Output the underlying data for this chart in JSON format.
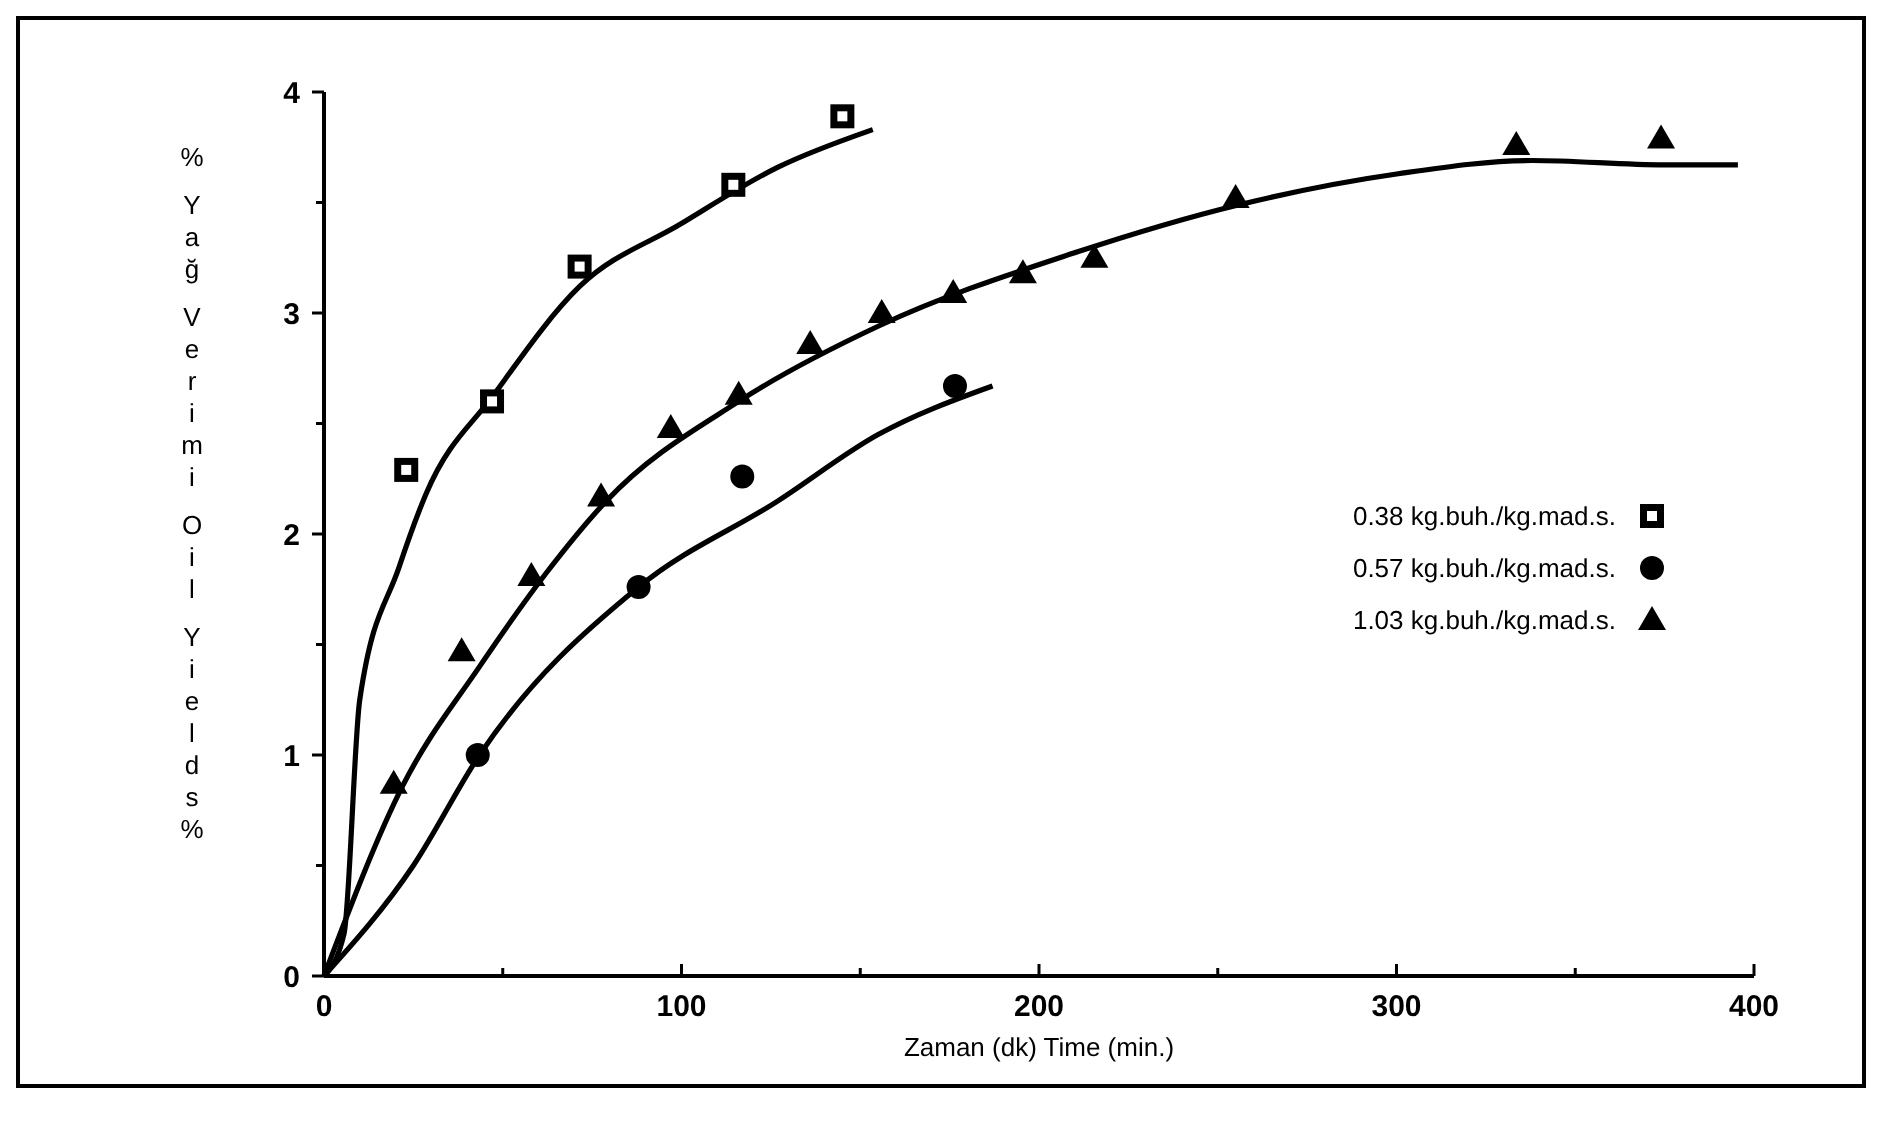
{
  "chart_data": {
    "type": "scatter",
    "xlabel": "Zaman (dk)   Time (min.)",
    "ylabel": "% Yağ Verimi Oil Yields%",
    "xlim": [
      0,
      400
    ],
    "ylim": [
      0,
      4
    ],
    "xticks": [
      0,
      {
        "value": 50,
        "label": null
      },
      100,
      {
        "value": 150,
        "label": null
      },
      200,
      {
        "value": 250,
        "label": null
      },
      300,
      {
        "value": 350,
        "label": null
      },
      400
    ],
    "yticks": [
      0,
      {
        "value": 0.5,
        "label": null
      },
      1,
      {
        "value": 1.5,
        "label": null
      },
      2,
      {
        "value": 2.5,
        "label": null
      },
      3,
      {
        "value": 3.5,
        "label": null
      },
      4
    ],
    "grid": false,
    "legend": "right",
    "series": [
      {
        "type": "line",
        "color": "#000000",
        "marker": "none",
        "x": [
          0,
          5.6,
          10,
          21,
          28.5,
          47.5,
          71.5,
          99.5,
          127,
          153.5
        ],
        "values": [
          0,
          0.19,
          1.25,
          1.85,
          2.18,
          2.63,
          3.12,
          3.4,
          3.66,
          3.83
        ]
      },
      {
        "type": "line",
        "color": "#000000",
        "marker": "none",
        "x": [
          0,
          25,
          43.5,
          88,
          127,
          155,
          187
        ],
        "values": [
          0,
          0.5,
          1.0,
          1.76,
          2.15,
          2.45,
          2.67
        ]
      },
      {
        "type": "line",
        "color": "#000000",
        "marker": "none",
        "x": [
          0,
          22,
          43.5,
          62,
          79,
          116,
          155,
          209.5,
          256,
          300.5,
          338,
          375,
          395.5
        ],
        "values": [
          0,
          0.86,
          1.4,
          1.82,
          2.15,
          2.6,
          2.94,
          3.27,
          3.49,
          3.63,
          3.69,
          3.67,
          3.67
        ]
      },
      {
        "name": "0.38 kg.buh./kg.mad.s.",
        "color": "#000000",
        "marker": "square",
        "x": [
          23,
          47,
          71.5,
          114.5,
          145
        ],
        "values": [
          2.29,
          2.6,
          3.21,
          3.58,
          3.89
        ]
      },
      {
        "name": "0.57 kg.buh./kg.mad.s.",
        "color": "#000000",
        "marker": "circle",
        "x": [
          43,
          88,
          117,
          176.5
        ],
        "values": [
          1.0,
          1.76,
          2.26,
          2.67
        ]
      },
      {
        "name": "1.03 kg.buh./kg.mad.s.",
        "color": "#000000",
        "marker": "triangle",
        "x": [
          19.5,
          38.5,
          58,
          77.5,
          97,
          116,
          136,
          156,
          176,
          195.5,
          215.5,
          255,
          333.5,
          374
        ],
        "values": [
          0.87,
          1.47,
          1.81,
          2.17,
          2.48,
          2.63,
          2.86,
          3.0,
          3.09,
          3.18,
          3.25,
          3.52,
          3.76,
          3.79
        ]
      }
    ]
  }
}
